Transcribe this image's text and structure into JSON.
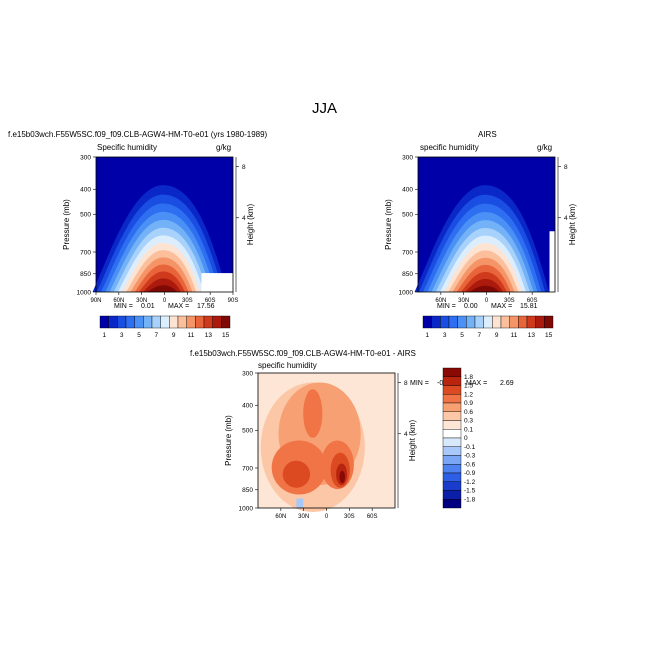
{
  "page": {
    "title": "JJA"
  },
  "colors": {
    "abs_scale": [
      "#0000a8",
      "#0a28c8",
      "#1a4ee2",
      "#2e6ef0",
      "#4a90f5",
      "#74b2f8",
      "#a8d2fb",
      "#dceefd",
      "#fde3d2",
      "#fbbf9c",
      "#f59466",
      "#e8643a",
      "#cf3a1c",
      "#ab1a0c",
      "#7e0905"
    ],
    "diff_scale": [
      "#000080",
      "#0a1ea8",
      "#1a3ccc",
      "#2e5ee6",
      "#4f82f0",
      "#7aa6f5",
      "#a8c8fa",
      "#d8e8fd",
      "#ffffff",
      "#fde6d6",
      "#fbc7a6",
      "#f7a074",
      "#f07446",
      "#dc4a22",
      "#b8240e",
      "#880906"
    ]
  },
  "chart_data": [
    {
      "type": "heatmap",
      "title": "f.e15b03wch.F55W5SC.f09_f09.CLB-AGW4-HM-T0-e01 (yrs 1980-1989)",
      "subtitle_left": "Specific humidity",
      "subtitle_right": "g/kg",
      "ylabel": "Pressure (mb)",
      "ylabel_right": "Height (km)",
      "y_ticks": [
        "300",
        "400",
        "500",
        "700",
        "850",
        "1000"
      ],
      "y_ticks_right": [
        "8",
        "4"
      ],
      "x_ticks": [
        "90N",
        "60N",
        "30N",
        "0",
        "30S",
        "60S",
        "90S"
      ],
      "min_label": "MIN =",
      "min_value": "0.01",
      "max_label": "MAX =",
      "max_value": "17.56",
      "colorbar_labels": [
        "1",
        "3",
        "5",
        "7",
        "9",
        "11",
        "13",
        "15"
      ],
      "peak": 17.56,
      "xlim": [
        90,
        -90
      ],
      "ylim": [
        1000,
        300
      ]
    },
    {
      "type": "heatmap",
      "title": "AIRS",
      "subtitle_left": "specific humidity",
      "subtitle_right": "g/kg",
      "ylabel": "Pressure (mb)",
      "ylabel_right": "Height (km)",
      "y_ticks": [
        "300",
        "400",
        "500",
        "700",
        "850",
        "1000"
      ],
      "y_ticks_right": [
        "8",
        "4"
      ],
      "x_ticks": [
        "60N",
        "30N",
        "0",
        "30S",
        "60S"
      ],
      "min_label": "MIN =",
      "min_value": "0.00",
      "max_label": "MAX =",
      "max_value": "15.81",
      "colorbar_labels": [
        "1",
        "3",
        "5",
        "7",
        "9",
        "11",
        "13",
        "15"
      ],
      "peak": 15.81,
      "xlim": [
        80,
        -80
      ],
      "ylim": [
        1000,
        300
      ]
    },
    {
      "type": "heatmap",
      "title": "f.e15b03wch.F55W5SC.f09_f09.CLB-AGW4-HM-T0-e01 - AIRS",
      "subtitle_left": "specific humidity",
      "ylabel": "Pressure (mb)",
      "ylabel_right": "Height (km)",
      "y_ticks": [
        "300",
        "400",
        "500",
        "700",
        "850",
        "1000"
      ],
      "y_ticks_right": [
        "8",
        "4"
      ],
      "x_ticks": [
        "60N",
        "30N",
        "0",
        "30S",
        "60S"
      ],
      "min_label": "MIN =",
      "min_value": "-0.30",
      "max_label": "MAX =",
      "max_value": "2.69",
      "colorbar_labels": [
        "1.8",
        "1.5",
        "1.2",
        "0.9",
        "0.6",
        "0.3",
        "0.1",
        "0",
        "-0.1",
        "-0.3",
        "-0.6",
        "-0.9",
        "-1.2",
        "-1.5",
        "-1.8"
      ],
      "xlim": [
        80,
        -80
      ],
      "ylim": [
        1000,
        300
      ]
    }
  ]
}
